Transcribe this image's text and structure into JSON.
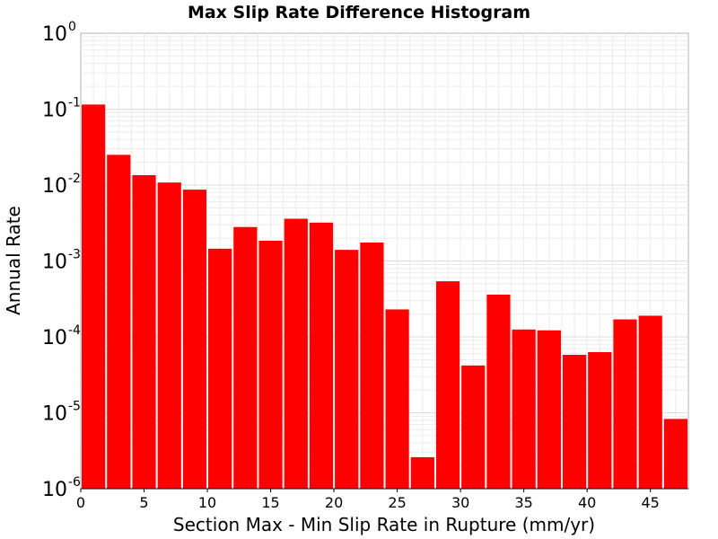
{
  "chart_data": {
    "type": "bar",
    "title": "Max Slip Rate Difference Histogram",
    "xlabel": "Section Max - Min Slip Rate in Rupture (mm/yr)",
    "ylabel": "Annual Rate",
    "yscale": "log",
    "xlim": [
      0,
      48
    ],
    "ylim": [
      1e-06,
      1
    ],
    "bin_width": 2,
    "x_ticks": [
      "0",
      "5",
      "10",
      "15",
      "20",
      "25",
      "30",
      "35",
      "40",
      "45"
    ],
    "y_ticks": [
      {
        "base": "10",
        "exp": "0"
      },
      {
        "base": "10",
        "exp": "-1"
      },
      {
        "base": "10",
        "exp": "-2"
      },
      {
        "base": "10",
        "exp": "-3"
      },
      {
        "base": "10",
        "exp": "-4"
      },
      {
        "base": "10",
        "exp": "-5"
      },
      {
        "base": "10",
        "exp": "-6"
      }
    ],
    "bins": [
      {
        "x": 1,
        "y": 0.115
      },
      {
        "x": 3,
        "y": 0.025
      },
      {
        "x": 5,
        "y": 0.0135
      },
      {
        "x": 7,
        "y": 0.0108
      },
      {
        "x": 9,
        "y": 0.0087
      },
      {
        "x": 11,
        "y": 0.00145
      },
      {
        "x": 13,
        "y": 0.0028
      },
      {
        "x": 15,
        "y": 0.00185
      },
      {
        "x": 17,
        "y": 0.0036
      },
      {
        "x": 19,
        "y": 0.0032
      },
      {
        "x": 21,
        "y": 0.0014
      },
      {
        "x": 23,
        "y": 0.00175
      },
      {
        "x": 25,
        "y": 0.00023
      },
      {
        "x": 27,
        "y": 2.6e-06
      },
      {
        "x": 29,
        "y": 0.00054
      },
      {
        "x": 31,
        "y": 4.2e-05
      },
      {
        "x": 33,
        "y": 0.00036
      },
      {
        "x": 35,
        "y": 0.000125
      },
      {
        "x": 37,
        "y": 0.000122
      },
      {
        "x": 39,
        "y": 5.8e-05
      },
      {
        "x": 41,
        "y": 6.3e-05
      },
      {
        "x": 43,
        "y": 0.00017
      },
      {
        "x": 45,
        "y": 0.00019
      },
      {
        "x": 47,
        "y": 8.3e-06
      }
    ],
    "bar_color": "#ff0000",
    "grid": true,
    "legend": "none"
  }
}
